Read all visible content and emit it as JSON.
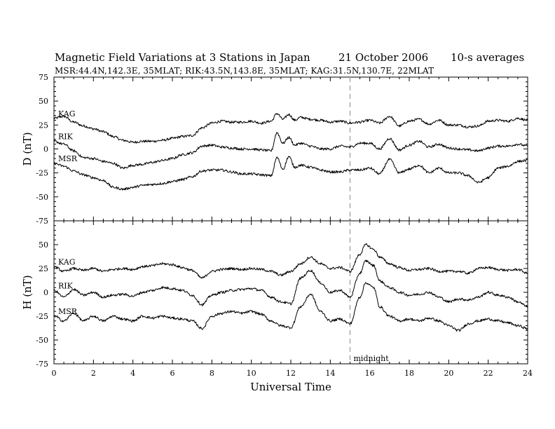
{
  "header": {
    "title": "Magnetic Field Variations at 3 Stations in Japan",
    "date": "21 October 2006",
    "averaging": "10-s averages",
    "stations": "MSR:44.4N,142.3E, 35MLAT;  RIK:43.5N,143.8E, 35MLAT;  KAG:31.5N,130.7E, 22MLAT"
  },
  "colors": {
    "trace": "#000000",
    "midnight_line": "#aaaaaa"
  },
  "chart_data": [
    {
      "type": "line",
      "panel": "top",
      "ylabel": "D (nT)",
      "ylim": [
        -75,
        75
      ],
      "yticks": [
        -75,
        -50,
        -25,
        0,
        25,
        50,
        75
      ],
      "xlim": [
        0,
        24
      ],
      "midnight_ut": 15,
      "series": [
        {
          "name": "KAG",
          "x": [
            0,
            0.5,
            1,
            1.5,
            2,
            2.5,
            3,
            3.5,
            4,
            4.5,
            5,
            5.5,
            6,
            6.5,
            7,
            7.5,
            8,
            8.5,
            9,
            9.5,
            10,
            10.5,
            11,
            11.3,
            11.6,
            11.9,
            12.2,
            12.5,
            13,
            13.5,
            14,
            14.5,
            15,
            15.5,
            16,
            16.5,
            17,
            17.5,
            18,
            18.5,
            19,
            19.5,
            20,
            20.5,
            21,
            21.5,
            22,
            22.5,
            23,
            23.5,
            24
          ],
          "y": [
            32,
            34,
            28,
            24,
            21,
            18,
            13,
            9,
            7,
            8,
            8,
            9,
            11,
            13,
            14,
            22,
            27,
            29,
            28,
            28,
            29,
            27,
            29,
            37,
            31,
            36,
            30,
            33,
            31,
            30,
            28,
            29,
            27,
            28,
            30,
            27,
            34,
            24,
            29,
            31,
            26,
            30,
            25,
            25,
            23,
            24,
            29,
            30,
            29,
            32,
            30
          ]
        },
        {
          "name": "RIK",
          "x": [
            0,
            0.5,
            1,
            1.5,
            2,
            2.5,
            3,
            3.5,
            4,
            4.5,
            5,
            5.5,
            6,
            6.5,
            7,
            7.5,
            8,
            8.5,
            9,
            9.5,
            10,
            10.5,
            11,
            11.3,
            11.6,
            11.9,
            12.2,
            12.5,
            13,
            13.5,
            14,
            14.5,
            15,
            15.5,
            16,
            16.5,
            17,
            17.5,
            18,
            18.5,
            19,
            19.5,
            20,
            20.5,
            21,
            21.5,
            22,
            22.5,
            23,
            23.5,
            24
          ],
          "y": [
            8,
            5,
            -2,
            -9,
            -10,
            -13,
            -15,
            -20,
            -17,
            -16,
            -14,
            -12,
            -10,
            -6,
            -4,
            3,
            4,
            2,
            1,
            0,
            0,
            -1,
            -2,
            17,
            6,
            12,
            4,
            6,
            3,
            0,
            0,
            3,
            2,
            6,
            6,
            0,
            11,
            -1,
            4,
            8,
            2,
            5,
            1,
            0,
            -1,
            -2,
            1,
            3,
            3,
            5,
            3
          ]
        },
        {
          "name": "MSR",
          "x": [
            0,
            0.5,
            1,
            1.5,
            2,
            2.5,
            3,
            3.5,
            4,
            4.5,
            5,
            5.5,
            6,
            6.5,
            7,
            7.5,
            8,
            8.5,
            9,
            9.5,
            10,
            10.5,
            11,
            11.3,
            11.6,
            11.9,
            12.2,
            12.5,
            13,
            13.5,
            14,
            14.5,
            15,
            15.5,
            16,
            16.5,
            17,
            17.5,
            18,
            18.5,
            19,
            19.5,
            20,
            20.5,
            21,
            21.5,
            22,
            22.5,
            23,
            23.5,
            24
          ],
          "y": [
            -15,
            -18,
            -23,
            -27,
            -30,
            -33,
            -40,
            -42,
            -40,
            -38,
            -37,
            -36,
            -34,
            -32,
            -29,
            -23,
            -22,
            -22,
            -24,
            -26,
            -26,
            -27,
            -28,
            -9,
            -21,
            -8,
            -19,
            -17,
            -19,
            -22,
            -24,
            -24,
            -22,
            -22,
            -20,
            -26,
            -11,
            -25,
            -21,
            -17,
            -25,
            -20,
            -25,
            -25,
            -28,
            -35,
            -30,
            -20,
            -18,
            -13,
            -12
          ]
        }
      ]
    },
    {
      "type": "line",
      "panel": "bottom",
      "ylabel": "H (nT)",
      "xlabel": "Universal Time",
      "ylim": [
        -75,
        75
      ],
      "yticks": [
        -75,
        -50,
        -25,
        0,
        25,
        50
      ],
      "xlim": [
        0,
        24
      ],
      "xticks": [
        0,
        2,
        4,
        6,
        8,
        10,
        12,
        14,
        16,
        18,
        20,
        22,
        24
      ],
      "midnight_ut": 15,
      "annotation": "midnight",
      "series": [
        {
          "name": "KAG",
          "x": [
            0,
            0.5,
            1,
            1.5,
            2,
            2.5,
            3,
            3.5,
            4,
            4.5,
            5,
            5.5,
            6,
            6.5,
            7,
            7.5,
            8,
            8.5,
            9,
            9.5,
            10,
            10.5,
            11,
            11.5,
            12,
            12.5,
            13,
            13.5,
            14,
            14.5,
            15,
            15.5,
            15.8,
            16.2,
            16.5,
            17,
            17.5,
            18,
            18.5,
            19,
            19.5,
            20,
            20.5,
            21,
            21.5,
            22,
            22.5,
            23,
            23.5,
            24
          ],
          "y": [
            27,
            22,
            25,
            23,
            25,
            22,
            24,
            25,
            24,
            27,
            28,
            30,
            29,
            26,
            23,
            15,
            22,
            24,
            25,
            24,
            25,
            24,
            22,
            18,
            22,
            30,
            37,
            30,
            25,
            26,
            22,
            40,
            50,
            45,
            37,
            30,
            26,
            23,
            24,
            25,
            22,
            22,
            22,
            20,
            25,
            26,
            24,
            23,
            24,
            20
          ]
        },
        {
          "name": "RIK",
          "x": [
            0,
            0.5,
            1,
            1.5,
            2,
            2.5,
            3,
            3.5,
            4,
            4.5,
            5,
            5.5,
            6,
            6.5,
            7,
            7.5,
            8,
            8.5,
            9,
            9.5,
            10,
            10.5,
            11,
            11.5,
            12,
            12.5,
            13,
            13.5,
            14,
            14.5,
            15,
            15.5,
            15.8,
            16.2,
            16.5,
            17,
            17.5,
            18,
            18.5,
            19,
            19.5,
            20,
            20.5,
            21,
            21.5,
            22,
            22.5,
            23,
            23.5,
            24
          ],
          "y": [
            2,
            -5,
            3,
            -3,
            0,
            -5,
            -3,
            -2,
            -4,
            0,
            2,
            5,
            4,
            2,
            -3,
            -13,
            -3,
            0,
            2,
            3,
            4,
            2,
            -5,
            -10,
            -12,
            15,
            23,
            10,
            0,
            2,
            -5,
            20,
            33,
            28,
            12,
            5,
            0,
            -3,
            -2,
            0,
            -5,
            -10,
            -7,
            -8,
            -5,
            0,
            -3,
            -5,
            -10,
            -15
          ]
        },
        {
          "name": "MSR",
          "x": [
            0,
            0.5,
            1,
            1.5,
            2,
            2.5,
            3,
            3.5,
            4,
            4.5,
            5,
            5.5,
            6,
            6.5,
            7,
            7.5,
            8,
            8.5,
            9,
            9.5,
            10,
            10.5,
            11,
            11.5,
            12,
            12.5,
            13,
            13.5,
            14,
            14.5,
            15,
            15.5,
            15.8,
            16.2,
            16.5,
            17,
            17.5,
            18,
            18.5,
            19,
            19.5,
            20,
            20.5,
            21,
            21.5,
            22,
            22.5,
            23,
            23.5,
            24
          ],
          "y": [
            -25,
            -30,
            -22,
            -30,
            -25,
            -30,
            -25,
            -28,
            -30,
            -25,
            -27,
            -25,
            -27,
            -28,
            -30,
            -38,
            -25,
            -22,
            -20,
            -22,
            -20,
            -23,
            -30,
            -35,
            -37,
            -15,
            -2,
            -20,
            -30,
            -28,
            -33,
            -5,
            10,
            5,
            -15,
            -25,
            -30,
            -28,
            -30,
            -27,
            -30,
            -35,
            -40,
            -33,
            -30,
            -28,
            -30,
            -32,
            -35,
            -38
          ]
        }
      ]
    }
  ]
}
